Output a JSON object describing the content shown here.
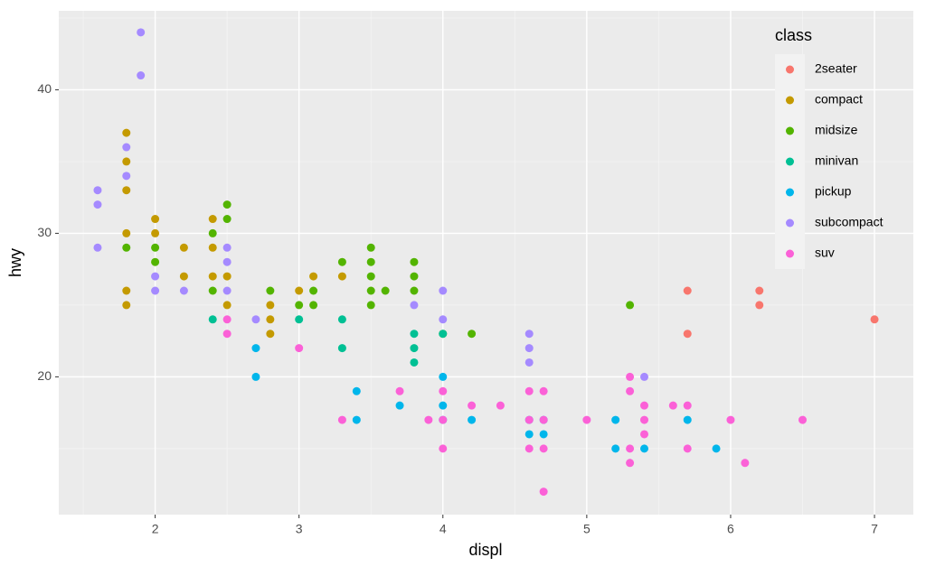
{
  "chart_data": {
    "type": "scatter",
    "x_label": "displ",
    "y_label": "hwy",
    "legend_title": "class",
    "legend": "top-right",
    "grid": true,
    "xlim": [
      1.33,
      7.27
    ],
    "ylim": [
      10.4,
      45.5
    ],
    "xticks": [
      2,
      3,
      4,
      5,
      6,
      7
    ],
    "yticks": [
      20,
      30,
      40
    ],
    "series": [
      {
        "name": "2seater",
        "color": "#F8766D",
        "x": [
          5.7,
          5.7,
          6.2,
          6.2,
          7
        ],
        "values": [
          26,
          23,
          26,
          25,
          24
        ]
      },
      {
        "name": "compact",
        "color": "#C49A00",
        "x": [
          1.8,
          1.8,
          1.8,
          1.8,
          1.8,
          1.8,
          2,
          2,
          2.2,
          2.2,
          2.4,
          2.4,
          2.4,
          2.5,
          2.5,
          2.8,
          2.8,
          2.8,
          3,
          3.1,
          3.3
        ],
        "values": [
          37,
          35,
          33,
          30,
          26,
          25,
          31,
          30,
          29,
          27,
          31,
          29,
          27,
          27,
          25,
          25,
          24,
          23,
          26,
          27,
          27
        ]
      },
      {
        "name": "midsize",
        "color": "#53B400",
        "x": [
          1.8,
          2,
          2,
          2.4,
          2.4,
          2.5,
          2.5,
          2.8,
          3,
          3.1,
          3.1,
          3.3,
          3.5,
          3.5,
          3.5,
          3.5,
          3.5,
          3.6,
          3.8,
          3.8,
          3.8,
          4,
          4.2,
          5.3
        ],
        "values": [
          29,
          29,
          28,
          30,
          26,
          32,
          31,
          26,
          25,
          26,
          25,
          28,
          29,
          28,
          27,
          26,
          25,
          26,
          28,
          27,
          26,
          23,
          23,
          25
        ]
      },
      {
        "name": "minivan",
        "color": "#00C094",
        "x": [
          2.4,
          3,
          3.3,
          3.3,
          3.8,
          3.8,
          3.8,
          4
        ],
        "values": [
          24,
          24,
          24,
          22,
          23,
          22,
          21,
          23
        ]
      },
      {
        "name": "pickup",
        "color": "#00B6EB",
        "x": [
          2.7,
          2.7,
          3.4,
          3.4,
          3.7,
          4,
          4,
          4,
          4.2,
          4.6,
          4.6,
          4.7,
          4.7,
          5.2,
          5.2,
          5.4,
          5.7,
          5.9
        ],
        "values": [
          22,
          20,
          19,
          17,
          18,
          20,
          18,
          17,
          17,
          17,
          16,
          17,
          16,
          17,
          15,
          15,
          17,
          15
        ]
      },
      {
        "name": "subcompact",
        "color": "#A58AFF",
        "x": [
          1.6,
          1.6,
          1.6,
          1.8,
          1.8,
          1.9,
          1.9,
          2,
          2,
          2.2,
          2.5,
          2.5,
          2.5,
          2.7,
          3.8,
          4,
          4,
          4.6,
          4.6,
          4.6,
          5.4
        ],
        "values": [
          33,
          32,
          29,
          36,
          34,
          44,
          41,
          27,
          26,
          26,
          29,
          28,
          26,
          24,
          25,
          26,
          24,
          23,
          22,
          21,
          20
        ]
      },
      {
        "name": "suv",
        "color": "#FB61D7",
        "x": [
          2.5,
          2.5,
          3,
          3.3,
          3.7,
          3.9,
          4,
          4,
          4,
          4.2,
          4.4,
          4.6,
          4.6,
          4.6,
          4.7,
          4.7,
          4.7,
          4.7,
          5,
          5.3,
          5.3,
          5.3,
          5.3,
          5.4,
          5.4,
          5.4,
          5.6,
          5.7,
          5.7,
          6,
          6.1,
          6.5
        ],
        "values": [
          24,
          23,
          22,
          17,
          19,
          17,
          19,
          17,
          15,
          18,
          18,
          19,
          17,
          15,
          19,
          17,
          15,
          12,
          17,
          20,
          19,
          15,
          14,
          18,
          17,
          16,
          18,
          18,
          15,
          17,
          14,
          17
        ]
      }
    ]
  }
}
